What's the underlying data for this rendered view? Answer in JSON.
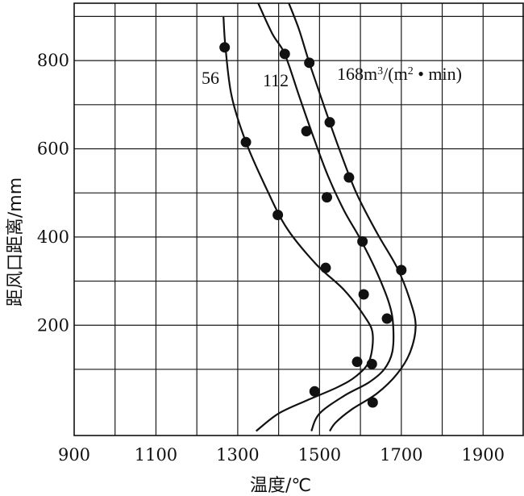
{
  "chart_data": {
    "type": "scatter",
    "xlabel": "温度/℃",
    "ylabel": "距风口距离/mm",
    "xlim": [
      900,
      2000
    ],
    "ylim": [
      -50,
      930
    ],
    "x_ticks": [
      900,
      1100,
      1300,
      1500,
      1700,
      1900
    ],
    "y_ticks": [
      200,
      400,
      600,
      800
    ],
    "x_tick_labels": [
      "900",
      "1100",
      "1300",
      "1500",
      "1700",
      "1900"
    ],
    "y_tick_labels": [
      "200",
      "400",
      "600",
      "800"
    ],
    "grid": true,
    "series": [
      {
        "name": "56",
        "label": "56",
        "points": [
          [
            1268,
            830
          ],
          [
            1320,
            615
          ],
          [
            1398,
            450
          ],
          [
            1515,
            330
          ],
          [
            1608,
            270
          ],
          [
            1592,
            117
          ],
          [
            1488,
            50
          ]
        ],
        "curve": [
          [
            1265,
            900
          ],
          [
            1270,
            830
          ],
          [
            1285,
            720
          ],
          [
            1320,
            615
          ],
          [
            1370,
            510
          ],
          [
            1420,
            420
          ],
          [
            1490,
            340
          ],
          [
            1560,
            280
          ],
          [
            1610,
            220
          ],
          [
            1630,
            180
          ],
          [
            1622,
            120
          ],
          [
            1590,
            85
          ],
          [
            1545,
            60
          ],
          [
            1470,
            30
          ],
          [
            1400,
            0
          ],
          [
            1345,
            -40
          ]
        ]
      },
      {
        "name": "112",
        "label": "112",
        "points": [
          [
            1415,
            815
          ],
          [
            1468,
            640
          ],
          [
            1518,
            490
          ],
          [
            1605,
            390
          ],
          [
            1665,
            215
          ],
          [
            1628,
            112
          ]
        ],
        "curve": [
          [
            1350,
            930
          ],
          [
            1385,
            860
          ],
          [
            1415,
            815
          ],
          [
            1450,
            720
          ],
          [
            1480,
            640
          ],
          [
            1520,
            540
          ],
          [
            1560,
            460
          ],
          [
            1600,
            395
          ],
          [
            1640,
            320
          ],
          [
            1670,
            250
          ],
          [
            1680,
            200
          ],
          [
            1678,
            140
          ],
          [
            1658,
            100
          ],
          [
            1620,
            70
          ],
          [
            1560,
            40
          ],
          [
            1500,
            0
          ],
          [
            1480,
            -40
          ]
        ]
      },
      {
        "name": "168",
        "label": "168m³/(m² • min)",
        "points": [
          [
            1475,
            795
          ],
          [
            1525,
            660
          ],
          [
            1572,
            535
          ],
          [
            1700,
            325
          ],
          [
            1630,
            25
          ]
        ],
        "curve": [
          [
            1425,
            930
          ],
          [
            1450,
            870
          ],
          [
            1475,
            795
          ],
          [
            1510,
            700
          ],
          [
            1548,
            600
          ],
          [
            1590,
            500
          ],
          [
            1640,
            410
          ],
          [
            1690,
            330
          ],
          [
            1720,
            260
          ],
          [
            1735,
            200
          ],
          [
            1722,
            140
          ],
          [
            1690,
            90
          ],
          [
            1640,
            45
          ],
          [
            1580,
            10
          ],
          [
            1540,
            -20
          ],
          [
            1525,
            -40
          ]
        ]
      }
    ]
  }
}
